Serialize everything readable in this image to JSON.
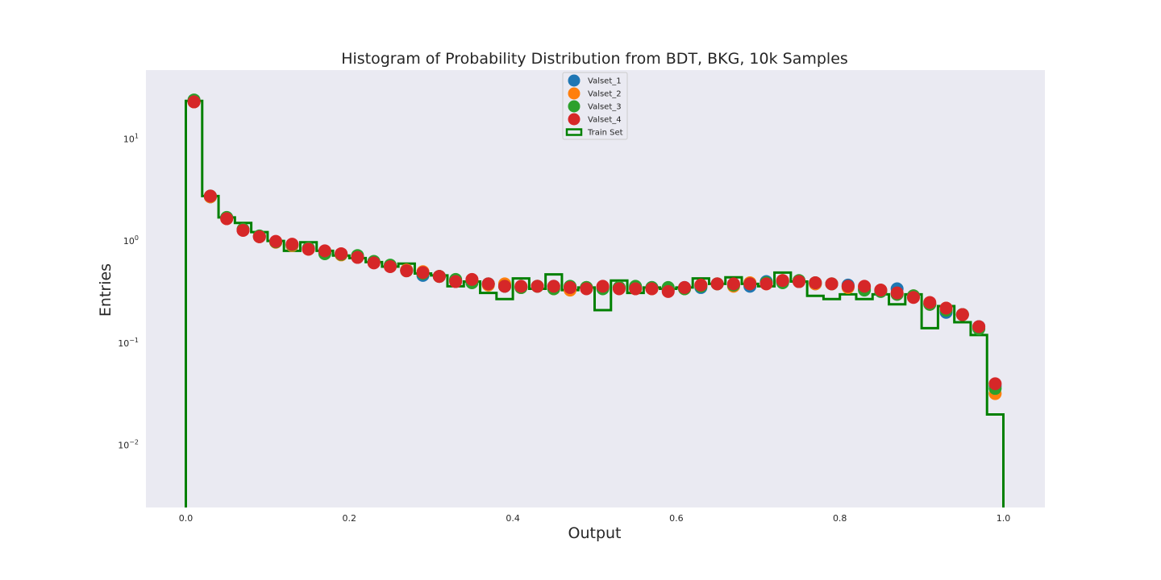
{
  "chart_data": {
    "type": "scatter",
    "title": "Histogram of Probability Distribution from BDT, BKG, 10k Samples",
    "xlabel": "Output",
    "ylabel": "Entries",
    "xlim": [
      -0.05,
      1.05
    ],
    "ylim": [
      0.002,
      35
    ],
    "yscale": "log",
    "grid": false,
    "legend_position": "top-center",
    "x_ticks": [
      "0.0",
      "0.2",
      "0.4",
      "0.6",
      "0.8",
      "1.0"
    ],
    "x_tick_values": [
      0.0,
      0.2,
      0.4,
      0.6,
      0.8,
      1.0
    ],
    "y_ticks": [
      {
        "value": 10,
        "base": "10",
        "exp": "1"
      },
      {
        "value": 1,
        "base": "10",
        "exp": "0"
      },
      {
        "value": 0.1,
        "base": "10",
        "exp": "−1"
      },
      {
        "value": 0.01,
        "base": "10",
        "exp": "−2"
      }
    ],
    "x": [
      0.01,
      0.03,
      0.05,
      0.07,
      0.09,
      0.11,
      0.13,
      0.15,
      0.17,
      0.19,
      0.21,
      0.23,
      0.25,
      0.27,
      0.29,
      0.31,
      0.33,
      0.35,
      0.37,
      0.39,
      0.41,
      0.43,
      0.45,
      0.47,
      0.49,
      0.51,
      0.53,
      0.55,
      0.57,
      0.59,
      0.61,
      0.63,
      0.65,
      0.67,
      0.69,
      0.71,
      0.73,
      0.75,
      0.77,
      0.79,
      0.81,
      0.83,
      0.85,
      0.87,
      0.89,
      0.91,
      0.93,
      0.95,
      0.97,
      0.99
    ],
    "series": [
      {
        "name": "Valset_1",
        "color": "#1f77b4",
        "marker": "circle",
        "values": [
          23.0,
          2.7,
          1.68,
          1.28,
          1.1,
          0.98,
          0.9,
          0.84,
          0.76,
          0.74,
          0.7,
          0.62,
          0.57,
          0.52,
          0.46,
          0.45,
          0.41,
          0.4,
          0.38,
          0.36,
          0.35,
          0.36,
          0.36,
          0.35,
          0.35,
          0.35,
          0.35,
          0.35,
          0.35,
          0.33,
          0.35,
          0.35,
          0.38,
          0.37,
          0.36,
          0.4,
          0.4,
          0.4,
          0.38,
          0.38,
          0.37,
          0.34,
          0.33,
          0.34,
          0.29,
          0.24,
          0.2,
          0.19,
          0.145,
          0.038
        ]
      },
      {
        "name": "Valset_2",
        "color": "#ff7f0e",
        "marker": "circle",
        "values": [
          23.0,
          2.7,
          1.65,
          1.28,
          1.1,
          0.97,
          0.9,
          0.83,
          0.77,
          0.73,
          0.7,
          0.62,
          0.57,
          0.52,
          0.5,
          0.45,
          0.41,
          0.41,
          0.37,
          0.38,
          0.35,
          0.36,
          0.34,
          0.33,
          0.35,
          0.35,
          0.35,
          0.34,
          0.34,
          0.34,
          0.34,
          0.37,
          0.38,
          0.36,
          0.39,
          0.38,
          0.41,
          0.4,
          0.38,
          0.38,
          0.35,
          0.35,
          0.33,
          0.3,
          0.29,
          0.24,
          0.22,
          0.19,
          0.14,
          0.032
        ]
      },
      {
        "name": "Valset_3",
        "color": "#2ca02c",
        "marker": "circle",
        "values": [
          24.0,
          2.75,
          1.7,
          1.3,
          1.12,
          0.98,
          0.92,
          0.85,
          0.75,
          0.74,
          0.72,
          0.63,
          0.58,
          0.51,
          0.48,
          0.45,
          0.42,
          0.39,
          0.38,
          0.36,
          0.35,
          0.36,
          0.34,
          0.36,
          0.35,
          0.34,
          0.35,
          0.36,
          0.35,
          0.35,
          0.34,
          0.36,
          0.38,
          0.37,
          0.38,
          0.39,
          0.39,
          0.41,
          0.39,
          0.38,
          0.36,
          0.33,
          0.32,
          0.3,
          0.29,
          0.24,
          0.21,
          0.19,
          0.138,
          0.036
        ]
      },
      {
        "name": "Valset_4",
        "color": "#d62728",
        "marker": "circle",
        "values": [
          23.0,
          2.75,
          1.65,
          1.27,
          1.1,
          0.99,
          0.93,
          0.83,
          0.8,
          0.75,
          0.69,
          0.61,
          0.56,
          0.51,
          0.49,
          0.45,
          0.4,
          0.42,
          0.38,
          0.36,
          0.36,
          0.36,
          0.36,
          0.35,
          0.34,
          0.36,
          0.34,
          0.34,
          0.34,
          0.32,
          0.35,
          0.37,
          0.38,
          0.38,
          0.38,
          0.38,
          0.41,
          0.4,
          0.39,
          0.38,
          0.36,
          0.36,
          0.33,
          0.31,
          0.28,
          0.25,
          0.22,
          0.19,
          0.145,
          0.04
        ]
      },
      {
        "name": "Train Set",
        "color": "#008000",
        "marker": "step",
        "values": [
          23.5,
          2.75,
          1.7,
          1.5,
          1.22,
          1.0,
          0.8,
          0.97,
          0.8,
          0.72,
          0.68,
          0.62,
          0.56,
          0.6,
          0.48,
          0.46,
          0.36,
          0.4,
          0.31,
          0.27,
          0.43,
          0.34,
          0.47,
          0.33,
          0.35,
          0.21,
          0.41,
          0.31,
          0.35,
          0.34,
          0.35,
          0.43,
          0.38,
          0.44,
          0.38,
          0.36,
          0.49,
          0.4,
          0.29,
          0.27,
          0.3,
          0.27,
          0.3,
          0.24,
          0.3,
          0.14,
          0.23,
          0.16,
          0.12,
          0.02
        ]
      }
    ]
  }
}
